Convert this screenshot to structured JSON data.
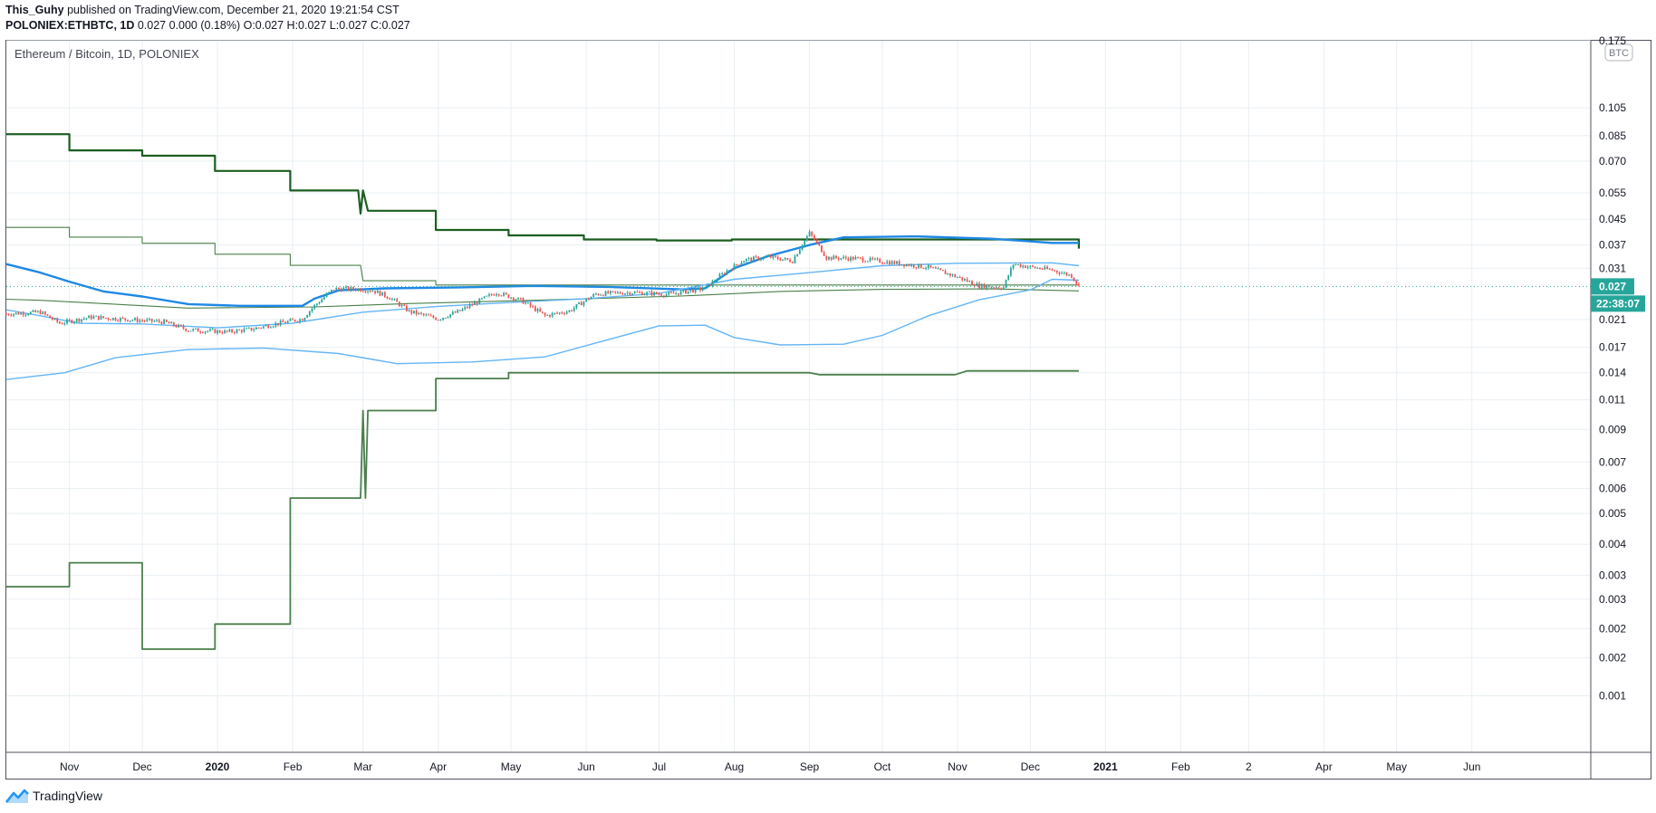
{
  "header": {
    "author": "This_Guhy",
    "published_text": " published on TradingView.com, December 21, 2020 19:21:54 CST",
    "symbol": "POLONIEX:ETHBTC, 1D",
    "ohlc_text": " 0.027 0.000 (0.18%) O:0.027 H:0.027 L:0.027 C:0.027"
  },
  "footer": {
    "brand": "TradingView"
  },
  "colors": {
    "up": "#26a69a",
    "down": "#ef5350",
    "dark_green": "#1b5e20",
    "mid_green": "#4a7f4a",
    "blue": "#1e88e5",
    "light_blue": "#64b5f6",
    "last_price_bg": "#26a69a",
    "grid": "#e9eff3"
  },
  "chart_data": {
    "type": "line",
    "title": "Ethereum / Bitcoin, 1D, POLONIEX",
    "currency_label": "BTC",
    "y_scale": "log",
    "ylim": [
      0.00078,
      0.175
    ],
    "y_ticks": [
      {
        "v": 0.175,
        "label": "0.175"
      },
      {
        "v": 0.105,
        "label": "0.105"
      },
      {
        "v": 0.085,
        "label": "0.085"
      },
      {
        "v": 0.07,
        "label": "0.070"
      },
      {
        "v": 0.055,
        "label": "0.055"
      },
      {
        "v": 0.045,
        "label": "0.045"
      },
      {
        "v": 0.037,
        "label": "0.037"
      },
      {
        "v": 0.031,
        "label": "0.031"
      },
      {
        "v": 0.021,
        "label": "0.021"
      },
      {
        "v": 0.017,
        "label": "0.017"
      },
      {
        "v": 0.014,
        "label": "0.014"
      },
      {
        "v": 0.0114,
        "label": "0.011"
      },
      {
        "v": 0.0091,
        "label": "0.009"
      },
      {
        "v": 0.0071,
        "label": "0.007"
      },
      {
        "v": 0.0058,
        "label": "0.006"
      },
      {
        "v": 0.0048,
        "label": "0.005"
      },
      {
        "v": 0.0038,
        "label": "0.004"
      },
      {
        "v": 0.003,
        "label": "0.003"
      },
      {
        "v": 0.0025,
        "label": "0.003"
      },
      {
        "v": 0.002,
        "label": "0.002"
      },
      {
        "v": 0.0016,
        "label": "0.002"
      },
      {
        "v": 0.0012,
        "label": "0.001"
      }
    ],
    "x_range": [
      "2019-10-06",
      "2021-07-20"
    ],
    "x_ticks": [
      {
        "date": "2019-11-01",
        "label": "Nov",
        "bold": false
      },
      {
        "date": "2019-12-01",
        "label": "Dec",
        "bold": false
      },
      {
        "date": "2020-01-01",
        "label": "2020",
        "bold": true
      },
      {
        "date": "2020-02-01",
        "label": "Feb",
        "bold": false
      },
      {
        "date": "2020-03-01",
        "label": "Mar",
        "bold": false
      },
      {
        "date": "2020-04-01",
        "label": "Apr",
        "bold": false
      },
      {
        "date": "2020-05-01",
        "label": "May",
        "bold": false
      },
      {
        "date": "2020-06-01",
        "label": "Jun",
        "bold": false
      },
      {
        "date": "2020-07-01",
        "label": "Jul",
        "bold": false
      },
      {
        "date": "2020-08-01",
        "label": "Aug",
        "bold": false
      },
      {
        "date": "2020-09-01",
        "label": "Sep",
        "bold": false
      },
      {
        "date": "2020-10-01",
        "label": "Oct",
        "bold": false
      },
      {
        "date": "2020-11-01",
        "label": "Nov",
        "bold": false
      },
      {
        "date": "2020-12-01",
        "label": "Dec",
        "bold": false
      },
      {
        "date": "2021-01-01",
        "label": "2021",
        "bold": true
      },
      {
        "date": "2021-02-01",
        "label": "Feb",
        "bold": false
      },
      {
        "date": "2021-03-01",
        "label": "2",
        "bold": false
      },
      {
        "date": "2021-04-01",
        "label": "Apr",
        "bold": false
      },
      {
        "date": "2021-05-01",
        "label": "May",
        "bold": false
      },
      {
        "date": "2021-06-01",
        "label": "Jun",
        "bold": false
      }
    ],
    "last_price": {
      "value": 0.027,
      "label": "0.027",
      "countdown": "22:38:07"
    },
    "price_series": {
      "name": "ETHBTC",
      "points": [
        [
          "2019-10-06",
          0.0219
        ],
        [
          "2019-10-20",
          0.0222
        ],
        [
          "2019-10-28",
          0.0204
        ],
        [
          "2019-11-10",
          0.0214
        ],
        [
          "2019-11-25",
          0.021
        ],
        [
          "2019-12-10",
          0.0206
        ],
        [
          "2019-12-20",
          0.0194
        ],
        [
          "2020-01-05",
          0.0191
        ],
        [
          "2020-01-15",
          0.0195
        ],
        [
          "2020-01-25",
          0.0203
        ],
        [
          "2020-02-05",
          0.0211
        ],
        [
          "2020-02-10",
          0.0233
        ],
        [
          "2020-02-18",
          0.0265
        ],
        [
          "2020-02-27",
          0.0265
        ],
        [
          "2020-03-05",
          0.0262
        ],
        [
          "2020-03-12",
          0.0248
        ],
        [
          "2020-03-20",
          0.0223
        ],
        [
          "2020-04-01",
          0.0211
        ],
        [
          "2020-04-10",
          0.0224
        ],
        [
          "2020-04-25",
          0.0258
        ],
        [
          "2020-05-05",
          0.0243
        ],
        [
          "2020-05-15",
          0.0216
        ],
        [
          "2020-05-25",
          0.0224
        ],
        [
          "2020-06-05",
          0.0255
        ],
        [
          "2020-06-20",
          0.0258
        ],
        [
          "2020-07-05",
          0.0254
        ],
        [
          "2020-07-20",
          0.0266
        ],
        [
          "2020-07-28",
          0.03
        ],
        [
          "2020-08-05",
          0.033
        ],
        [
          "2020-08-15",
          0.0338
        ],
        [
          "2020-08-25",
          0.0328
        ],
        [
          "2020-09-01",
          0.0405
        ],
        [
          "2020-09-08",
          0.0336
        ],
        [
          "2020-09-20",
          0.0334
        ],
        [
          "2020-10-05",
          0.0324
        ],
        [
          "2020-10-20",
          0.0312
        ],
        [
          "2020-11-01",
          0.029
        ],
        [
          "2020-11-10",
          0.0271
        ],
        [
          "2020-11-20",
          0.0268
        ],
        [
          "2020-11-24",
          0.032
        ],
        [
          "2020-12-01",
          0.0313
        ],
        [
          "2020-12-10",
          0.0306
        ],
        [
          "2020-12-18",
          0.0293
        ],
        [
          "2020-12-21",
          0.027
        ]
      ]
    },
    "series": [
      {
        "style": "thick_dark_green",
        "points": [
          [
            "2019-10-06",
            0.086
          ],
          [
            "2019-11-01",
            0.086
          ],
          [
            "2019-11-01",
            0.076
          ],
          [
            "2019-12-01",
            0.076
          ],
          [
            "2019-12-01",
            0.073
          ],
          [
            "2019-12-31",
            0.073
          ],
          [
            "2019-12-31",
            0.065
          ],
          [
            "2020-01-31",
            0.065
          ],
          [
            "2020-01-31",
            0.056
          ],
          [
            "2020-02-28",
            0.056
          ],
          [
            "2020-02-29",
            0.047
          ],
          [
            "2020-03-01",
            0.056
          ],
          [
            "2020-03-03",
            0.048
          ],
          [
            "2020-03-31",
            0.048
          ],
          [
            "2020-03-31",
            0.0415
          ],
          [
            "2020-04-30",
            0.0415
          ],
          [
            "2020-04-30",
            0.0398
          ],
          [
            "2020-05-31",
            0.0398
          ],
          [
            "2020-05-31",
            0.0386
          ],
          [
            "2020-06-30",
            0.0386
          ],
          [
            "2020-06-30",
            0.0383
          ],
          [
            "2020-07-31",
            0.0383
          ],
          [
            "2020-07-31",
            0.0386
          ],
          [
            "2020-12-21",
            0.0386
          ],
          [
            "2020-12-21",
            0.036
          ]
        ]
      },
      {
        "style": "thin_green",
        "points": [
          [
            "2019-10-06",
            0.0423
          ],
          [
            "2019-11-01",
            0.0423
          ],
          [
            "2019-11-01",
            0.0393
          ],
          [
            "2019-12-01",
            0.0393
          ],
          [
            "2019-12-01",
            0.0375
          ],
          [
            "2019-12-31",
            0.0375
          ],
          [
            "2019-12-31",
            0.0345
          ],
          [
            "2020-01-31",
            0.0345
          ],
          [
            "2020-01-31",
            0.0317
          ],
          [
            "2020-02-29",
            0.0317
          ],
          [
            "2020-03-01",
            0.0282
          ],
          [
            "2020-03-31",
            0.0282
          ],
          [
            "2020-03-31",
            0.0273
          ],
          [
            "2020-12-21",
            0.0273
          ]
        ]
      },
      {
        "style": "thin_green",
        "points": [
          [
            "2019-10-06",
            0.0245
          ],
          [
            "2019-10-20",
            0.0243
          ],
          [
            "2019-12-20",
            0.0229
          ],
          [
            "2020-02-10",
            0.0231
          ],
          [
            "2020-03-20",
            0.0237
          ],
          [
            "2020-05-10",
            0.0243
          ],
          [
            "2020-07-10",
            0.0251
          ],
          [
            "2020-08-20",
            0.026
          ],
          [
            "2020-10-01",
            0.0264
          ],
          [
            "2020-11-15",
            0.0265
          ],
          [
            "2020-12-21",
            0.0261
          ]
        ]
      },
      {
        "style": "mid_green",
        "points": [
          [
            "2019-10-06",
            0.00275
          ],
          [
            "2019-11-01",
            0.00275
          ],
          [
            "2019-11-01",
            0.0033
          ],
          [
            "2019-12-01",
            0.0033
          ],
          [
            "2019-12-01",
            0.00171
          ],
          [
            "2019-12-31",
            0.00171
          ],
          [
            "2019-12-31",
            0.00207
          ],
          [
            "2020-01-31",
            0.00207
          ],
          [
            "2020-01-31",
            0.0054
          ],
          [
            "2020-02-29",
            0.0054
          ],
          [
            "2020-03-01",
            0.0105
          ],
          [
            "2020-03-02",
            0.0054
          ],
          [
            "2020-03-03",
            0.0105
          ],
          [
            "2020-03-31",
            0.0105
          ],
          [
            "2020-03-31",
            0.0134
          ],
          [
            "2020-04-30",
            0.0134
          ],
          [
            "2020-04-30",
            0.014
          ],
          [
            "2020-09-01",
            0.014
          ],
          [
            "2020-09-05",
            0.0138
          ],
          [
            "2020-10-31",
            0.0138
          ],
          [
            "2020-11-05",
            0.0142
          ],
          [
            "2020-12-21",
            0.0142
          ]
        ]
      },
      {
        "style": "thick_blue",
        "points": [
          [
            "2019-10-06",
            0.032
          ],
          [
            "2019-10-20",
            0.03
          ],
          [
            "2019-11-01",
            0.028
          ],
          [
            "2019-11-15",
            0.026
          ],
          [
            "2019-12-01",
            0.025
          ],
          [
            "2019-12-20",
            0.0236
          ],
          [
            "2020-01-10",
            0.0233
          ],
          [
            "2020-02-05",
            0.0233
          ],
          [
            "2020-02-10",
            0.0246
          ],
          [
            "2020-02-20",
            0.0262
          ],
          [
            "2020-03-10",
            0.0266
          ],
          [
            "2020-04-10",
            0.0268
          ],
          [
            "2020-05-10",
            0.0271
          ],
          [
            "2020-06-10",
            0.0269
          ],
          [
            "2020-07-10",
            0.0264
          ],
          [
            "2020-07-20",
            0.0266
          ],
          [
            "2020-08-01",
            0.031
          ],
          [
            "2020-08-15",
            0.034
          ],
          [
            "2020-09-01",
            0.037
          ],
          [
            "2020-09-15",
            0.0392
          ],
          [
            "2020-10-15",
            0.0395
          ],
          [
            "2020-11-15",
            0.0388
          ],
          [
            "2020-12-10",
            0.0376
          ],
          [
            "2020-12-21",
            0.0376
          ]
        ]
      },
      {
        "style": "thin_light_blue",
        "points": [
          [
            "2019-10-06",
            0.0226
          ],
          [
            "2019-10-20",
            0.0216
          ],
          [
            "2019-11-05",
            0.0204
          ],
          [
            "2019-12-01",
            0.0203
          ],
          [
            "2020-01-01",
            0.0197
          ],
          [
            "2020-02-01",
            0.0204
          ],
          [
            "2020-03-01",
            0.0222
          ],
          [
            "2020-04-01",
            0.0232
          ],
          [
            "2020-05-01",
            0.0239
          ],
          [
            "2020-06-01",
            0.0246
          ],
          [
            "2020-07-01",
            0.0256
          ],
          [
            "2020-08-01",
            0.0285
          ],
          [
            "2020-09-01",
            0.03
          ],
          [
            "2020-10-01",
            0.0316
          ],
          [
            "2020-11-01",
            0.0322
          ],
          [
            "2020-12-10",
            0.0323
          ],
          [
            "2020-12-21",
            0.0316
          ]
        ]
      },
      {
        "style": "thin_light_blue",
        "points": [
          [
            "2019-10-06",
            0.0133
          ],
          [
            "2019-10-30",
            0.014
          ],
          [
            "2019-11-20",
            0.0157
          ],
          [
            "2019-12-20",
            0.0167
          ],
          [
            "2020-01-20",
            0.0169
          ],
          [
            "2020-02-20",
            0.0162
          ],
          [
            "2020-03-05",
            0.0155
          ],
          [
            "2020-03-15",
            0.015
          ],
          [
            "2020-04-15",
            0.0152
          ],
          [
            "2020-05-15",
            0.0158
          ],
          [
            "2020-06-10",
            0.018
          ],
          [
            "2020-07-01",
            0.02
          ],
          [
            "2020-07-20",
            0.0201
          ],
          [
            "2020-08-01",
            0.0183
          ],
          [
            "2020-08-20",
            0.0173
          ],
          [
            "2020-09-15",
            0.0174
          ],
          [
            "2020-10-01",
            0.0186
          ],
          [
            "2020-10-20",
            0.0216
          ],
          [
            "2020-11-10",
            0.0244
          ],
          [
            "2020-12-01",
            0.0263
          ],
          [
            "2020-12-10",
            0.0285
          ],
          [
            "2020-12-21",
            0.0283
          ]
        ]
      }
    ]
  }
}
